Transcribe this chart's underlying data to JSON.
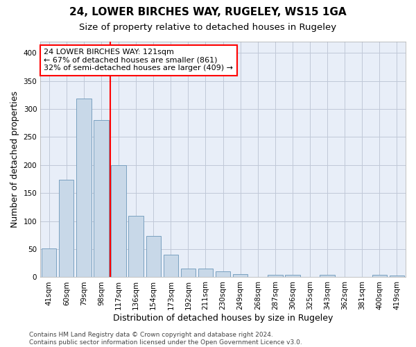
{
  "title_line1": "24, LOWER BIRCHES WAY, RUGELEY, WS15 1GA",
  "title_line2": "Size of property relative to detached houses in Rugeley",
  "xlabel": "Distribution of detached houses by size in Rugeley",
  "ylabel": "Number of detached properties",
  "categories": [
    "41sqm",
    "60sqm",
    "79sqm",
    "98sqm",
    "117sqm",
    "136sqm",
    "154sqm",
    "173sqm",
    "192sqm",
    "211sqm",
    "230sqm",
    "249sqm",
    "268sqm",
    "287sqm",
    "306sqm",
    "325sqm",
    "343sqm",
    "362sqm",
    "381sqm",
    "400sqm",
    "419sqm"
  ],
  "values": [
    51,
    174,
    318,
    280,
    200,
    109,
    74,
    40,
    16,
    15,
    10,
    6,
    0,
    4,
    4,
    0,
    4,
    0,
    0,
    4,
    3
  ],
  "bar_color": "#c8d8e8",
  "bar_edge_color": "#7aa0c0",
  "vline_color": "red",
  "vline_index": 3.5,
  "annotation_text": "24 LOWER BIRCHES WAY: 121sqm\n← 67% of detached houses are smaller (861)\n32% of semi-detached houses are larger (409) →",
  "ylim": [
    0,
    420
  ],
  "yticks": [
    0,
    50,
    100,
    150,
    200,
    250,
    300,
    350,
    400
  ],
  "grid_color": "#c0c8d8",
  "background_color": "#e8eef8",
  "footer_text": "Contains HM Land Registry data © Crown copyright and database right 2024.\nContains public sector information licensed under the Open Government Licence v3.0.",
  "title_fontsize": 11,
  "subtitle_fontsize": 9.5,
  "axis_label_fontsize": 9,
  "tick_fontsize": 7.5,
  "annotation_fontsize": 8,
  "footer_fontsize": 6.5
}
